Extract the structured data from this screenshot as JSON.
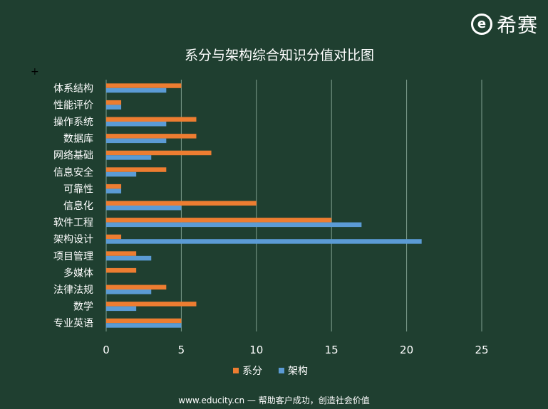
{
  "brand": {
    "logo_mark": "e",
    "logo_text": "希赛"
  },
  "footer": {
    "text": "www.educity.cn — 帮助客户成功，创造社会价值"
  },
  "colors": {
    "background": "#1f3f30",
    "series1": "#ed7d31",
    "series2": "#5b9bd5",
    "grid": "#7f9f8f",
    "text": "#ffffff"
  },
  "chart_data": {
    "type": "bar",
    "orientation": "horizontal",
    "title": "系分与架构综合知识分值对比图",
    "categories": [
      "体系结构",
      "性能评价",
      "操作系统",
      "数据库",
      "网络基础",
      "信息安全",
      "可靠性",
      "信息化",
      "软件工程",
      "架构设计",
      "项目管理",
      "多媒体",
      "法律法规",
      "数学",
      "专业英语"
    ],
    "series": [
      {
        "name": "系分",
        "color": "#ed7d31",
        "values": [
          5,
          1,
          6,
          6,
          7,
          4,
          1,
          10,
          15,
          1,
          2,
          2,
          4,
          6,
          5
        ]
      },
      {
        "name": "架构",
        "color": "#5b9bd5",
        "values": [
          4,
          1,
          4,
          4,
          3,
          2,
          1,
          5,
          17,
          21,
          3,
          0,
          3,
          2,
          5
        ]
      }
    ],
    "xlim": [
      0,
      25
    ],
    "xticks": [
      0,
      5,
      10,
      15,
      20,
      25
    ],
    "grid": true,
    "legend": "bottom"
  }
}
